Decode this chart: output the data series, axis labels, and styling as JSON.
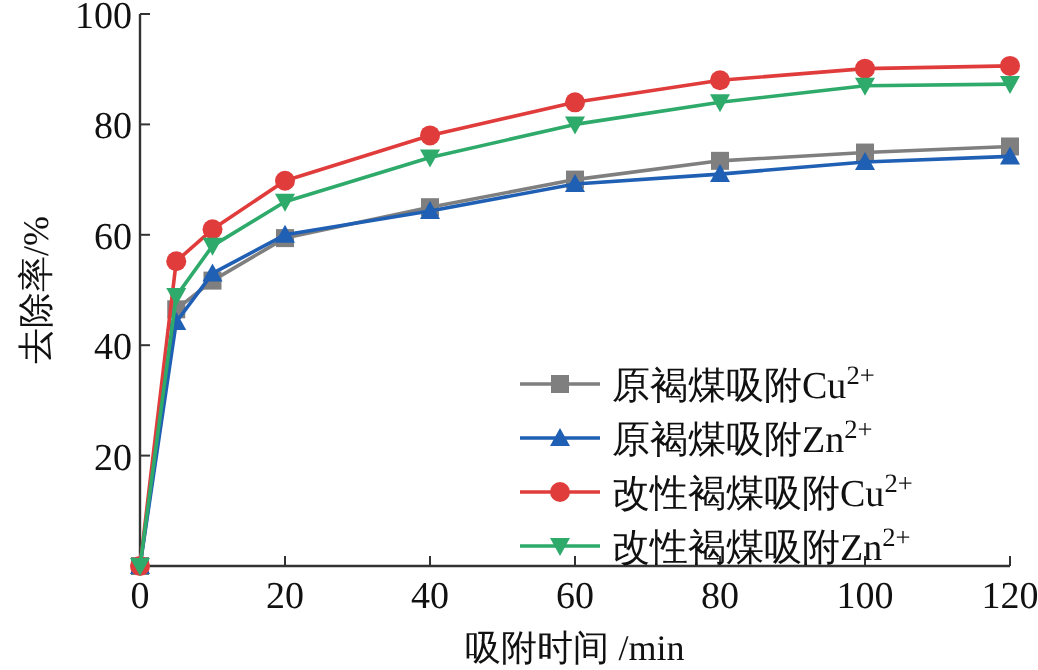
{
  "chart_data": {
    "type": "line",
    "xlabel": "吸附时间 /min",
    "ylabel": "去除率/%",
    "x": [
      0,
      5,
      10,
      20,
      40,
      60,
      80,
      100,
      120
    ],
    "series": [
      {
        "name": "原褐煤吸附Cu$^{2+}$",
        "color": "#7f7f7f",
        "marker": "square",
        "values": [
          0,
          46.5,
          51.7,
          59.4,
          65,
          70,
          73.4,
          74.9,
          76
        ]
      },
      {
        "name": "原褐煤吸附Zn$^{2+}$",
        "color": "#1f5fb4",
        "marker": "triangle",
        "values": [
          0,
          44.2,
          53,
          60,
          64.3,
          69.2,
          71,
          73.2,
          74.2
        ]
      },
      {
        "name": "改性褐煤吸附Cu$^{2+}$",
        "color": "#e03c3c",
        "marker": "circle",
        "values": [
          0,
          55.2,
          61,
          69.8,
          78,
          84,
          88,
          90.1,
          90.6
        ]
      },
      {
        "name": "改性褐煤吸附Zn$^{2+}$",
        "color": "#2eaa6a",
        "marker": "triangle_down",
        "values": [
          0,
          48.9,
          58,
          66,
          74,
          80,
          84,
          87,
          87.3
        ]
      }
    ],
    "xlim": [
      0,
      120
    ],
    "xticks": [
      0,
      20,
      40,
      60,
      80,
      100,
      120
    ],
    "ylim": [
      0,
      100
    ],
    "yticks": [
      20,
      40,
      60,
      80,
      100
    ],
    "grid": false,
    "legend": "bottom right",
    "line_style": "solid"
  }
}
